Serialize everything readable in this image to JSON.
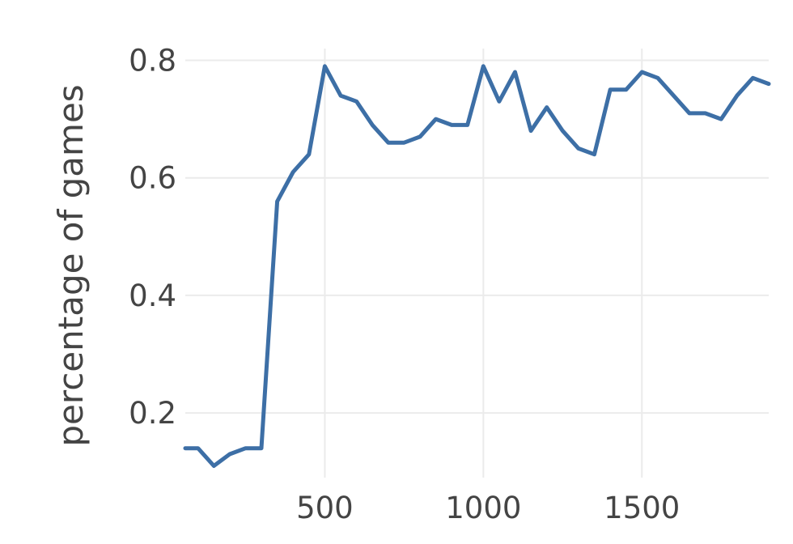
{
  "chart_data": {
    "type": "line",
    "title": "",
    "xlabel": "",
    "ylabel": "percentage of games",
    "xlim": [
      60,
      1900
    ],
    "ylim": [
      0.09,
      0.82
    ],
    "xticks": [
      500,
      1000,
      1500
    ],
    "yticks": [
      0.2,
      0.4,
      0.6,
      0.8
    ],
    "xtick_labels": [
      "500",
      "1000",
      "1500"
    ],
    "ytick_labels": [
      "0.2",
      "0.4",
      "0.6",
      "0.8"
    ],
    "grid": true,
    "legend": "none",
    "series": [
      {
        "color": "#3d6fa6",
        "x": [
          60,
          100,
          150,
          200,
          250,
          300,
          350,
          400,
          450,
          500,
          550,
          600,
          650,
          700,
          750,
          800,
          850,
          900,
          950,
          1000,
          1050,
          1100,
          1150,
          1200,
          1250,
          1300,
          1350,
          1400,
          1450,
          1500,
          1550,
          1600,
          1650,
          1700,
          1750,
          1800,
          1850,
          1900
        ],
        "y": [
          0.14,
          0.14,
          0.11,
          0.13,
          0.14,
          0.14,
          0.56,
          0.61,
          0.64,
          0.79,
          0.74,
          0.73,
          0.69,
          0.66,
          0.66,
          0.67,
          0.7,
          0.69,
          0.69,
          0.79,
          0.73,
          0.78,
          0.68,
          0.72,
          0.68,
          0.65,
          0.64,
          0.75,
          0.75,
          0.78,
          0.77,
          0.74,
          0.71,
          0.71,
          0.7,
          0.74,
          0.77,
          0.76
        ]
      }
    ]
  }
}
